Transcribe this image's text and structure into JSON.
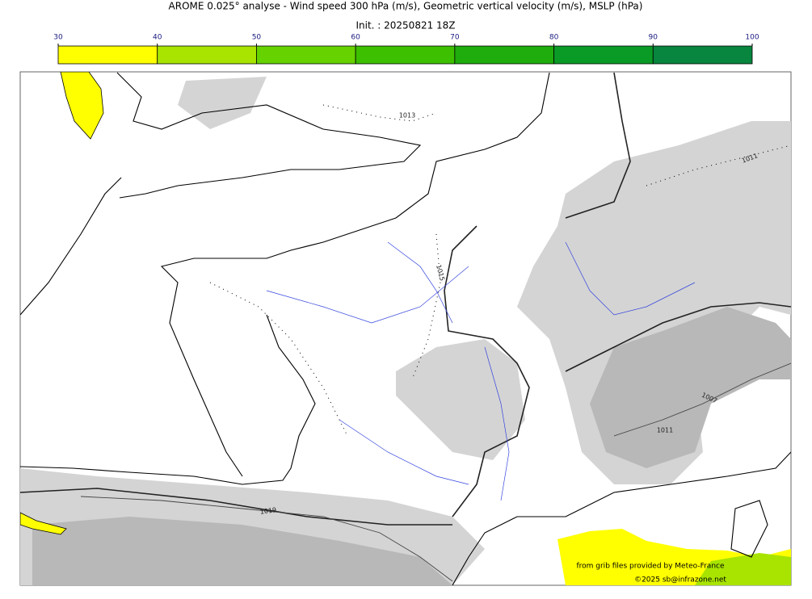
{
  "header": {
    "title": "AROME 0.025° analyse - Wind speed 300 hPa (m/s), Geometric vertical velocity (m/s), MSLP (hPa)",
    "subtitle": "Init. : 20250821 18Z"
  },
  "colorbar": {
    "ticks": [
      30,
      40,
      50,
      60,
      70,
      80,
      90,
      100
    ],
    "colors": [
      "#ffff00",
      "#a8e400",
      "#66d200",
      "#3cc000",
      "#1ead0c",
      "#0a9a26",
      "#08853e",
      "#0a744e"
    ]
  },
  "isobars": [
    "1013",
    "1015",
    "1011",
    "1007",
    "1011",
    "1019"
  ],
  "credits": [
    "from grib files provided by Meteo-France",
    "©2025 sb@infrazone.net"
  ]
}
